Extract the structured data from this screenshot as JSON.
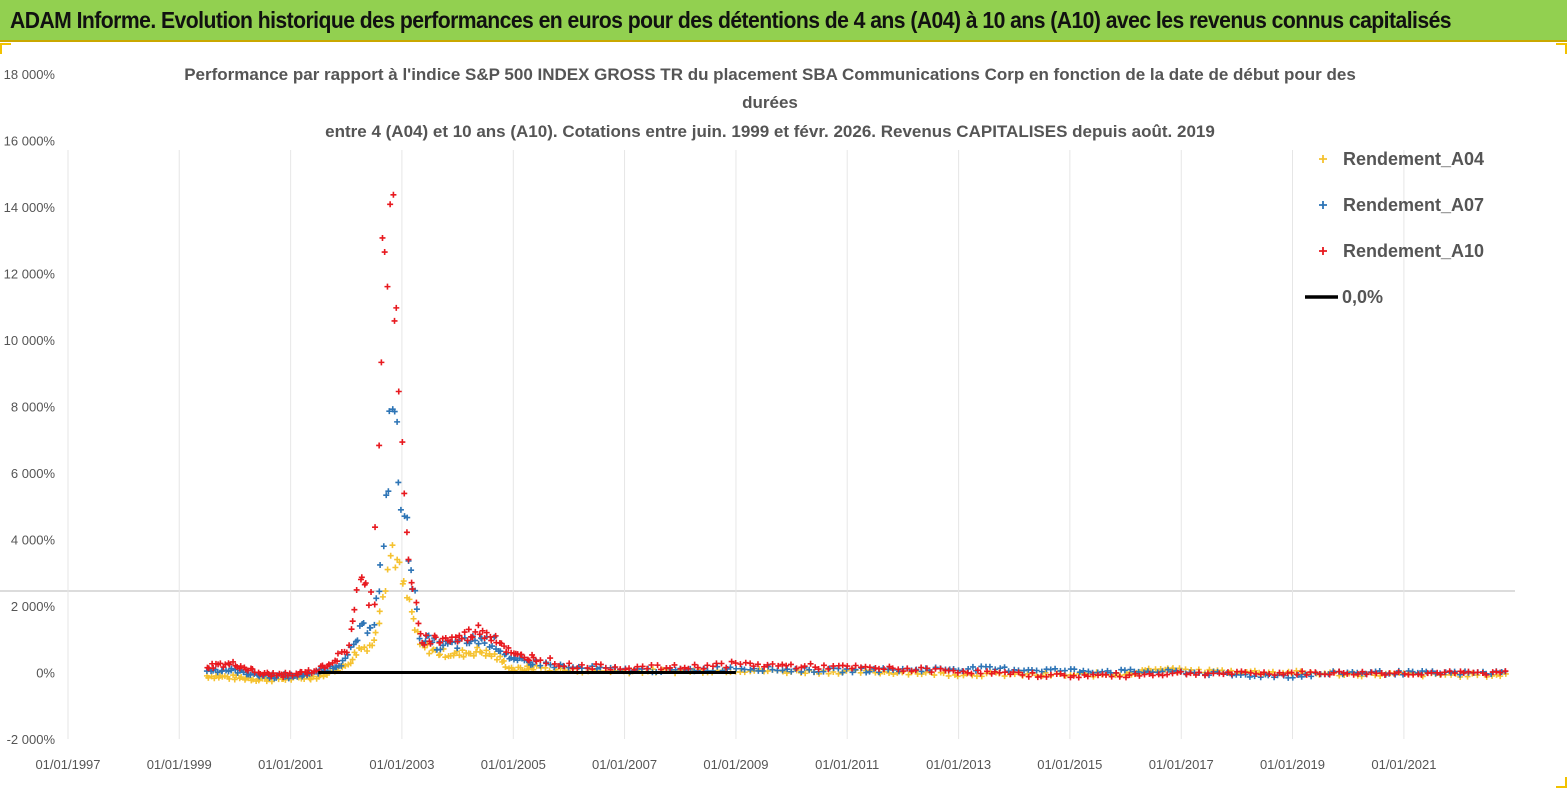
{
  "header": {
    "title": "ADAM Informe. Evolution historique des performances en euros pour des détentions de 4 ans (A04) à 10 ans (A10) avec les revenus connus capitalisés"
  },
  "chart_data": {
    "type": "scatter",
    "title_lines": [
      "Performance par rapport à l'indice S&P 500 INDEX GROSS TR  du placement SBA Communications Corp en fonction de la date de début pour des",
      "durées",
      "entre 4 (A04) et 10 ans (A10). Cotations entre juin. 1999 et févr. 2026. Revenus CAPITALISES depuis août. 2019"
    ],
    "xlabel": "",
    "ylabel": "",
    "x_tick_labels": [
      "01/01/1997",
      "01/01/1999",
      "01/01/2001",
      "01/01/2003",
      "01/01/2005",
      "01/01/2007",
      "01/01/2009",
      "01/01/2011",
      "01/01/2013",
      "01/01/2015",
      "01/01/2017",
      "01/01/2019",
      "01/01/2021"
    ],
    "y_tick_labels": [
      "18 000%",
      "16 000%",
      "14 000%",
      "12 000%",
      "10 000%",
      "8 000%",
      "6 000%",
      "4 000%",
      "2 000%",
      "0%",
      "-2 000%"
    ],
    "xlim": [
      "1997-01-01",
      "2022-12-31"
    ],
    "ylim": [
      -2000,
      18000
    ],
    "grid": false,
    "legend_position": "top-right",
    "series": [
      {
        "name": "Rendement_A04",
        "color": "#f5c230",
        "points": [
          [
            "1999-07",
            -100
          ],
          [
            "2000-01",
            -150
          ],
          [
            "2000-07",
            -200
          ],
          [
            "2001-01",
            -180
          ],
          [
            "2001-07",
            -120
          ],
          [
            "2002-01",
            200
          ],
          [
            "2002-04",
            700
          ],
          [
            "2002-07",
            900
          ],
          [
            "2002-09",
            2500
          ],
          [
            "2002-11",
            3800
          ],
          [
            "2003-01",
            2700
          ],
          [
            "2003-03",
            1800
          ],
          [
            "2003-05",
            800
          ],
          [
            "2003-09",
            600
          ],
          [
            "2004-01",
            550
          ],
          [
            "2004-06",
            650
          ],
          [
            "2004-09",
            500
          ],
          [
            "2005-01",
            80
          ],
          [
            "2005-06",
            150
          ],
          [
            "2006-01",
            60
          ],
          [
            "2007-01",
            40
          ],
          [
            "2008-01",
            40
          ],
          [
            "2009-01",
            70
          ],
          [
            "2010-01",
            30
          ],
          [
            "2011-01",
            20
          ],
          [
            "2012-01",
            0
          ],
          [
            "2013-01",
            -50
          ],
          [
            "2014-01",
            -60
          ],
          [
            "2015-01",
            -80
          ],
          [
            "2016-01",
            -40
          ],
          [
            "2016-07",
            80
          ],
          [
            "2017-01",
            60
          ],
          [
            "2018-01",
            30
          ],
          [
            "2019-01",
            0
          ],
          [
            "2020-01",
            -50
          ],
          [
            "2021-01",
            -60
          ],
          [
            "2022-01",
            -70
          ],
          [
            "2022-12",
            -80
          ]
        ]
      },
      {
        "name": "Rendement_A07",
        "color": "#2e75b6",
        "points": [
          [
            "1999-07",
            80
          ],
          [
            "2000-01",
            60
          ],
          [
            "2000-07",
            -100
          ],
          [
            "2001-01",
            -120
          ],
          [
            "2001-07",
            0
          ],
          [
            "2002-01",
            350
          ],
          [
            "2002-04",
            1200
          ],
          [
            "2002-07",
            1600
          ],
          [
            "2002-09",
            3500
          ],
          [
            "2002-11",
            8700
          ],
          [
            "2003-01",
            5000
          ],
          [
            "2003-03",
            3400
          ],
          [
            "2003-05",
            1100
          ],
          [
            "2003-09",
            800
          ],
          [
            "2004-01",
            850
          ],
          [
            "2004-06",
            1000
          ],
          [
            "2004-09",
            900
          ],
          [
            "2005-01",
            350
          ],
          [
            "2005-06",
            300
          ],
          [
            "2006-01",
            150
          ],
          [
            "2007-01",
            80
          ],
          [
            "2008-01",
            60
          ],
          [
            "2009-01",
            150
          ],
          [
            "2010-01",
            80
          ],
          [
            "2011-01",
            60
          ],
          [
            "2012-01",
            80
          ],
          [
            "2013-01",
            120
          ],
          [
            "2014-01",
            100
          ],
          [
            "2015-01",
            60
          ],
          [
            "2016-01",
            30
          ],
          [
            "2017-01",
            20
          ],
          [
            "2018-01",
            -80
          ],
          [
            "2019-01",
            -100
          ],
          [
            "2020-01",
            0
          ],
          [
            "2021-01",
            -10
          ],
          [
            "2022-01",
            -20
          ],
          [
            "2022-12",
            0
          ]
        ]
      },
      {
        "name": "Rendement_A10",
        "color": "#e8191f",
        "points": [
          [
            "1999-07",
            200
          ],
          [
            "2000-01",
            250
          ],
          [
            "2000-07",
            -50
          ],
          [
            "2001-01",
            -80
          ],
          [
            "2001-07",
            80
          ],
          [
            "2002-01",
            600
          ],
          [
            "2002-04",
            2700
          ],
          [
            "2002-07",
            2200
          ],
          [
            "2002-09",
            12600
          ],
          [
            "2002-11",
            13300
          ],
          [
            "2003-01",
            6500
          ],
          [
            "2003-03",
            2700
          ],
          [
            "2003-05",
            1000
          ],
          [
            "2003-09",
            1000
          ],
          [
            "2004-01",
            1000
          ],
          [
            "2004-06",
            1300
          ],
          [
            "2004-09",
            1100
          ],
          [
            "2005-01",
            500
          ],
          [
            "2005-06",
            450
          ],
          [
            "2006-01",
            200
          ],
          [
            "2007-01",
            150
          ],
          [
            "2008-01",
            150
          ],
          [
            "2009-01",
            250
          ],
          [
            "2010-01",
            200
          ],
          [
            "2011-01",
            150
          ],
          [
            "2012-01",
            100
          ],
          [
            "2013-01",
            50
          ],
          [
            "2014-01",
            -50
          ],
          [
            "2015-01",
            -100
          ],
          [
            "2016-01",
            -80
          ],
          [
            "2017-01",
            -20
          ],
          [
            "2018-01",
            -30
          ],
          [
            "2019-01",
            -20
          ],
          [
            "2020-01",
            -20
          ],
          [
            "2021-01",
            -20
          ],
          [
            "2022-01",
            -20
          ],
          [
            "2022-12",
            -10
          ]
        ]
      },
      {
        "name": "0,0%",
        "color": "#000000",
        "points": [
          [
            "2001-07",
            0
          ],
          [
            "2009-01",
            0
          ]
        ]
      }
    ]
  }
}
